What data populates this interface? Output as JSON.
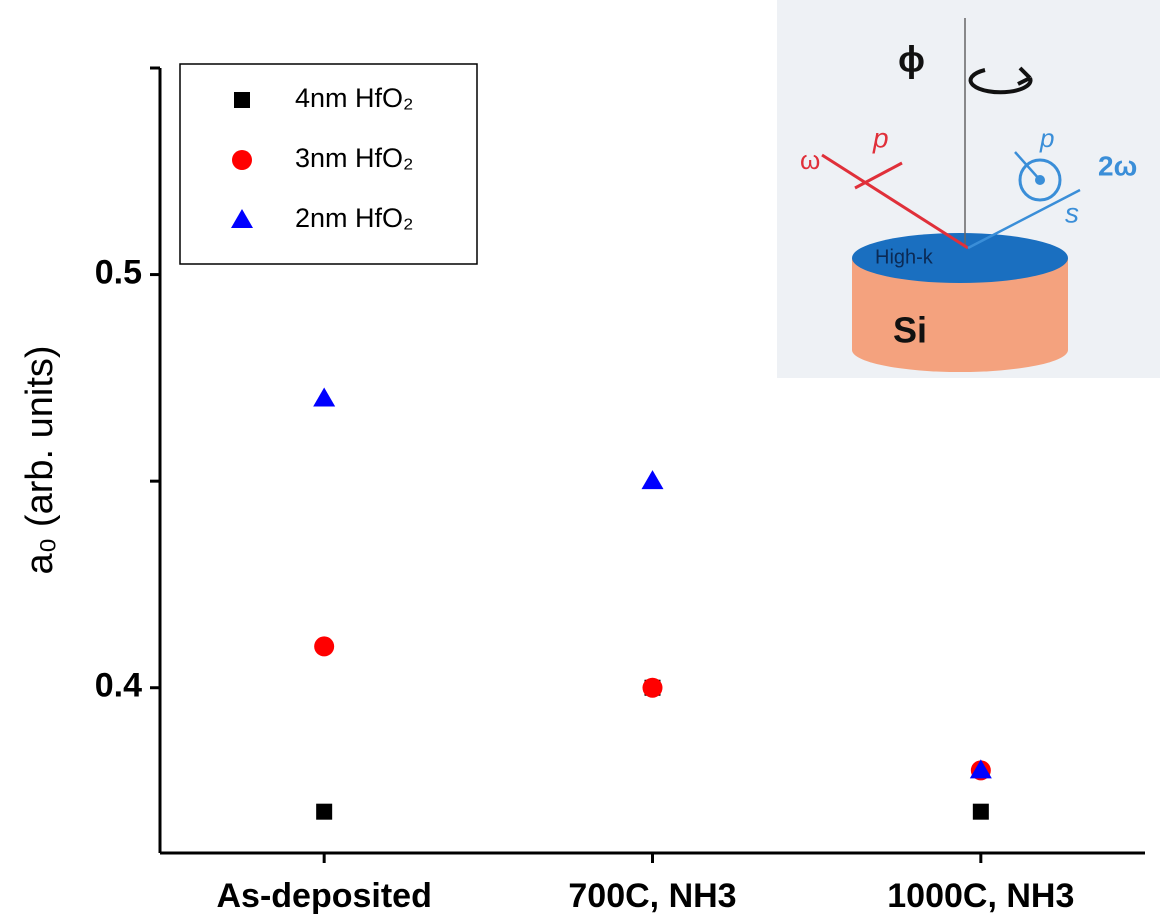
{
  "chart_data": {
    "type": "scatter",
    "y_label": "a₀ (arb. units)",
    "categories": [
      "As-deposited",
      "700C, NH3",
      "1000C, NH3"
    ],
    "series": [
      {
        "name": "4nm HfO₂",
        "color": "#000000",
        "marker": "square",
        "values": [
          0.37,
          0.4,
          0.37
        ]
      },
      {
        "name": "3nm HfO₂",
        "color": "#ff0000",
        "marker": "circle",
        "values": [
          0.41,
          0.4,
          0.38
        ]
      },
      {
        "name": "2nm HfO₂",
        "color": "#0000ff",
        "marker": "triangle",
        "values": [
          0.47,
          0.45,
          0.38
        ]
      }
    ],
    "ylim": [
      0.36,
      0.55
    ],
    "yticks": [
      0.4,
      0.5
    ],
    "yminorticks": [
      0.45,
      0.55
    ],
    "legend": "upper left",
    "inset": {
      "phi": "ϕ",
      "omega": "ω",
      "two_omega": "2ω",
      "p_in": "p",
      "p_out": "p",
      "s": "s",
      "layer": "High-k",
      "substrate": "Si"
    }
  }
}
